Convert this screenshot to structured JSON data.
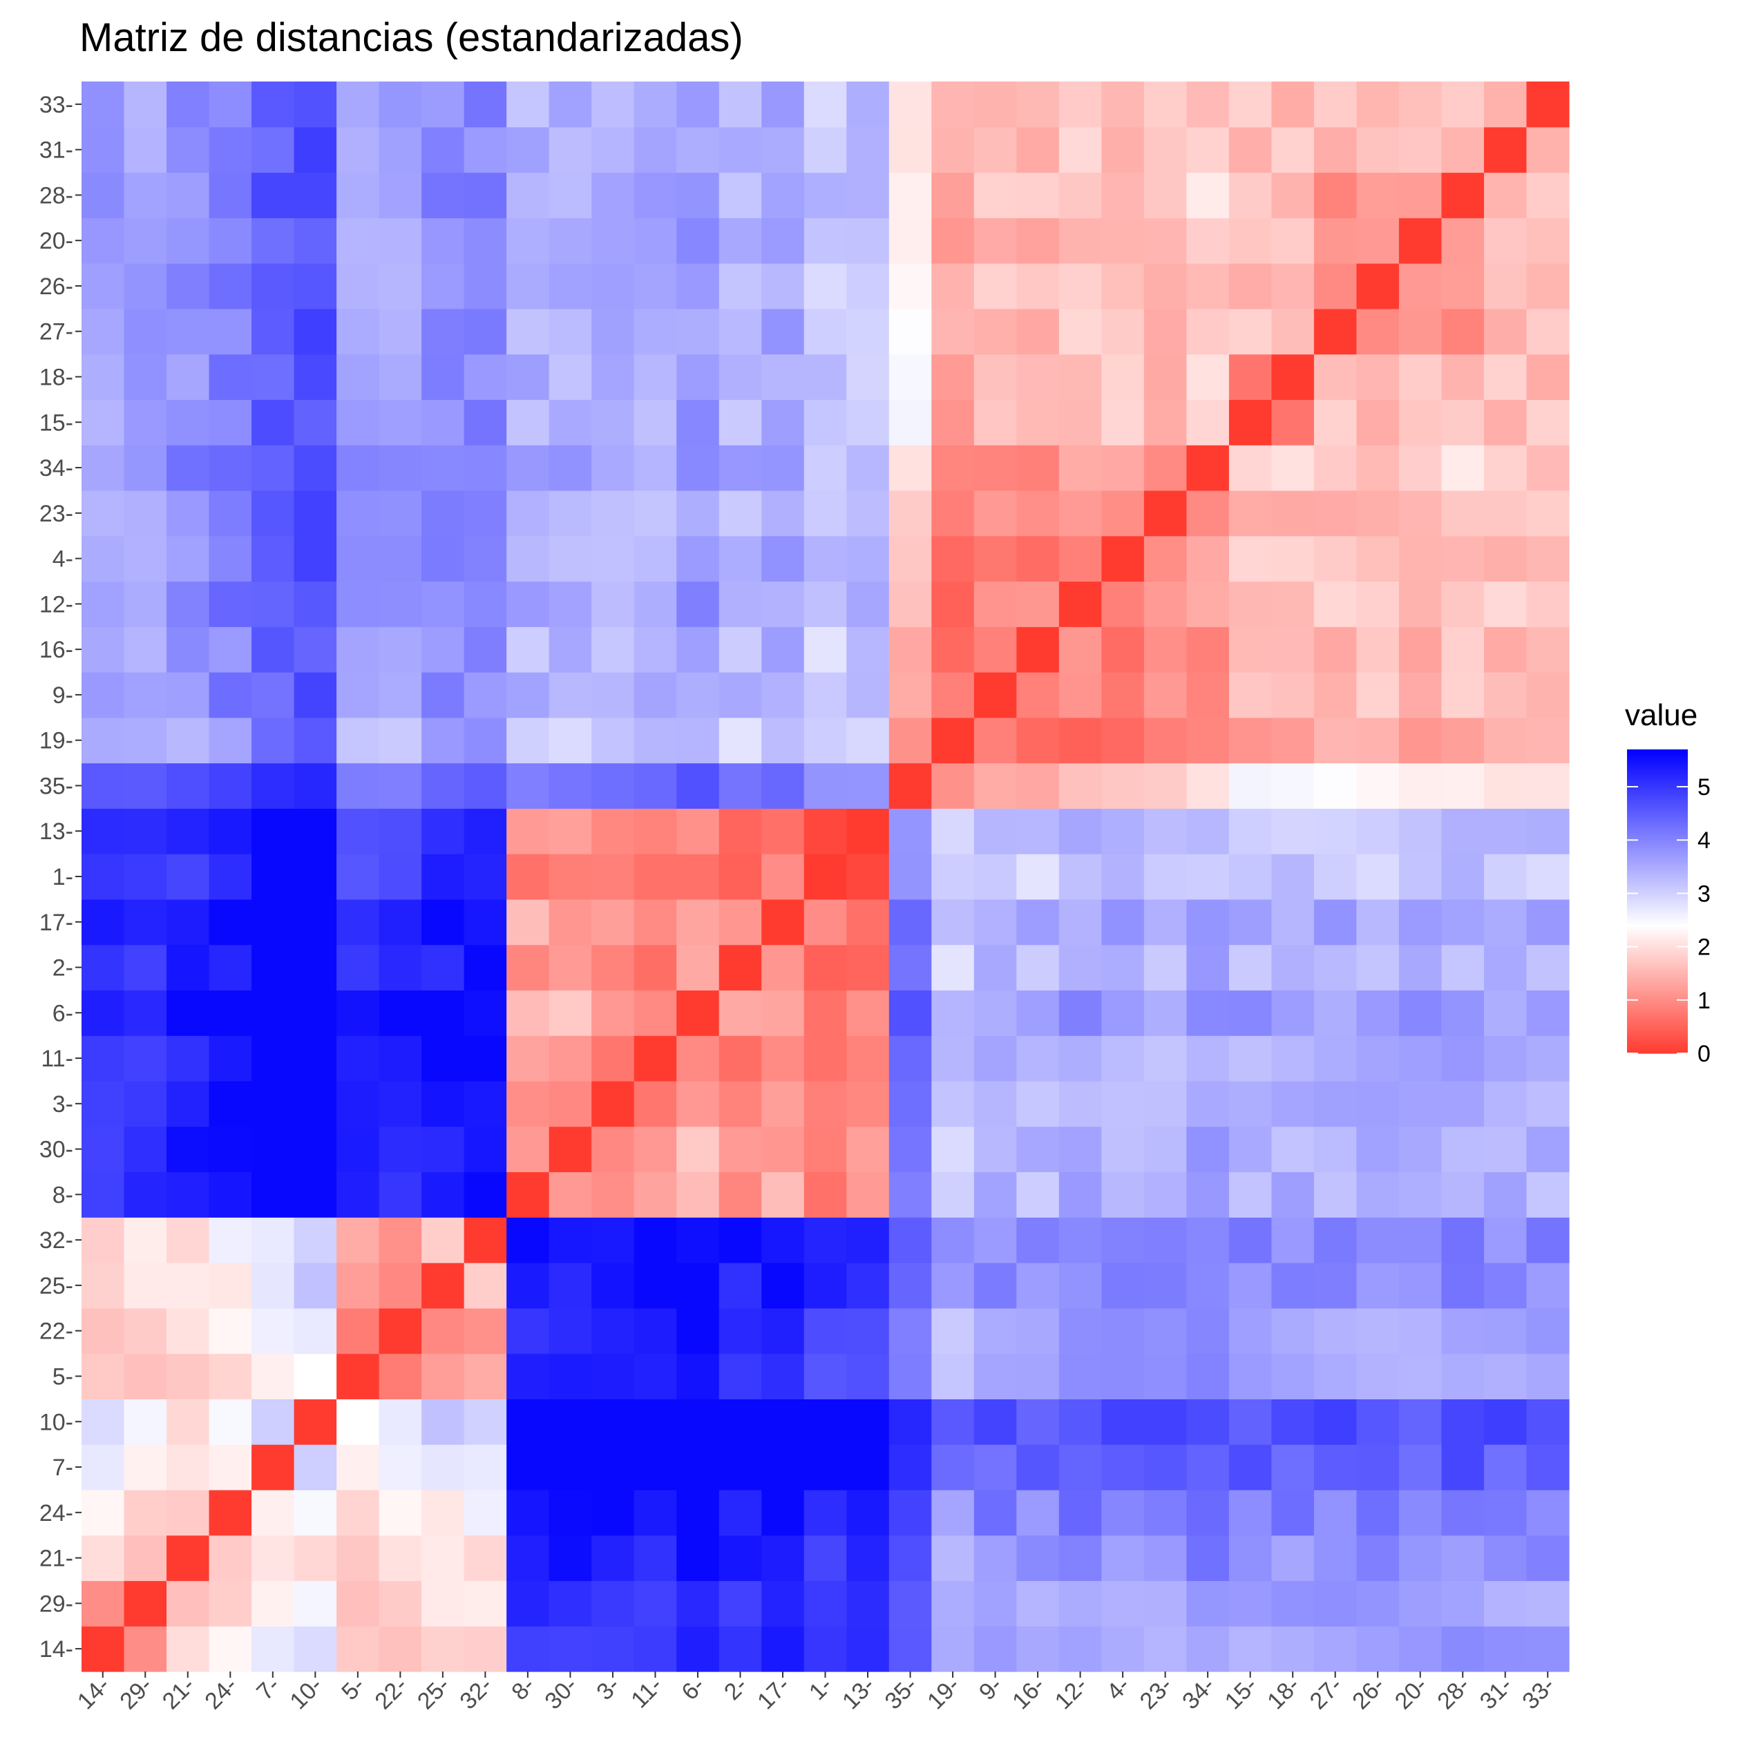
{
  "chart_data": {
    "type": "heatmap",
    "title": "Matriz de distancias (estandarizadas)",
    "xlabel": "",
    "ylabel": "",
    "labels": [
      "14",
      "29",
      "21",
      "24",
      "7",
      "10",
      "5",
      "22",
      "25",
      "32",
      "8",
      "30",
      "3",
      "11",
      "6",
      "2",
      "17",
      "1",
      "13",
      "35",
      "19",
      "9",
      "16",
      "12",
      "4",
      "23",
      "34",
      "15",
      "18",
      "27",
      "26",
      "20",
      "28",
      "31",
      "33"
    ],
    "groups": [
      {
        "names": [
          "14",
          "29"
        ],
        "cx": [
          0,
          0
        ]
      },
      {
        "names": [
          "21",
          "24",
          "7",
          "10"
        ],
        "cx": [
          0.2,
          0.45,
          0.85,
          1.05
        ]
      },
      {
        "names": [
          "5",
          "22",
          "25",
          "32"
        ],
        "cx": [
          0,
          0,
          0.3,
          0.35
        ]
      },
      {
        "names": [
          "8",
          "30"
        ],
        "cx": [
          0,
          0
        ]
      },
      {
        "names": [
          "3",
          "11",
          "6",
          "2",
          "17",
          "1",
          "13"
        ],
        "cx": [
          0,
          0,
          0.3,
          -0.1,
          0.15,
          -0.3,
          -0.2
        ]
      },
      {
        "names": [
          "35",
          "19",
          "9",
          "16",
          "12",
          "4",
          "23",
          "34"
        ],
        "cx": [
          0.7,
          -0.3,
          0,
          -0.1,
          0.1,
          0.05,
          0,
          0.2
        ]
      },
      {
        "names": [
          "15",
          "18"
        ],
        "cx": [
          0,
          0
        ]
      },
      {
        "names": [
          "27",
          "26",
          "20",
          "28"
        ],
        "cx": [
          0,
          0,
          0,
          0.1
        ]
      },
      {
        "names": [
          "31"
        ],
        "cx": [
          0
        ]
      },
      {
        "names": [
          "33"
        ],
        "cx": [
          0
        ]
      }
    ],
    "legend": {
      "title": "value",
      "position": "right",
      "ticks": [
        0,
        1,
        2,
        3,
        4,
        5
      ],
      "range": [
        0,
        5.7
      ],
      "low_color": "#FF3B30",
      "mid_color": "#FFFFFF",
      "high_color": "#0000FF",
      "midpoint": 2.4
    }
  }
}
